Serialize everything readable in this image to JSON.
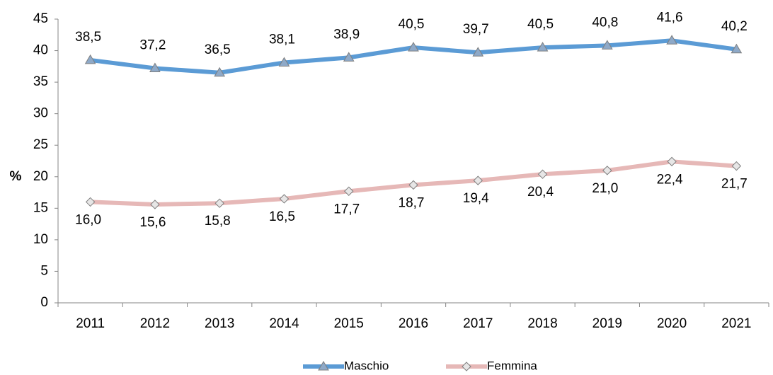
{
  "chart_data": {
    "type": "line",
    "y_axis_label": "%",
    "categories": [
      "2011",
      "2012",
      "2013",
      "2014",
      "2015",
      "2016",
      "2017",
      "2018",
      "2019",
      "2020",
      "2021"
    ],
    "series": [
      {
        "name": "Maschio",
        "color": "#5b9bd5",
        "marker": "triangle",
        "values": [
          38.5,
          37.2,
          36.5,
          38.1,
          38.9,
          40.5,
          39.7,
          40.5,
          40.8,
          41.6,
          40.2
        ],
        "value_labels": [
          "38,5",
          "37,2",
          "36,5",
          "38,1",
          "38,9",
          "40,5",
          "39,7",
          "40,5",
          "40,8",
          "41,6",
          "40,2"
        ]
      },
      {
        "name": "Femmina",
        "color": "#e6b8b7",
        "marker": "diamond",
        "values": [
          16.0,
          15.6,
          15.8,
          16.5,
          17.7,
          18.7,
          19.4,
          20.4,
          21.0,
          22.4,
          21.7
        ],
        "value_labels": [
          "16,0",
          "15,6",
          "15,8",
          "16,5",
          "17,7",
          "18,7",
          "19,4",
          "20,4",
          "21,0",
          "22,4",
          "21,7"
        ]
      }
    ],
    "ylim": [
      0,
      45
    ],
    "yticks": [
      0,
      5,
      10,
      15,
      20,
      25,
      30,
      35,
      40,
      45
    ],
    "grid": false,
    "legend": "bottom"
  }
}
